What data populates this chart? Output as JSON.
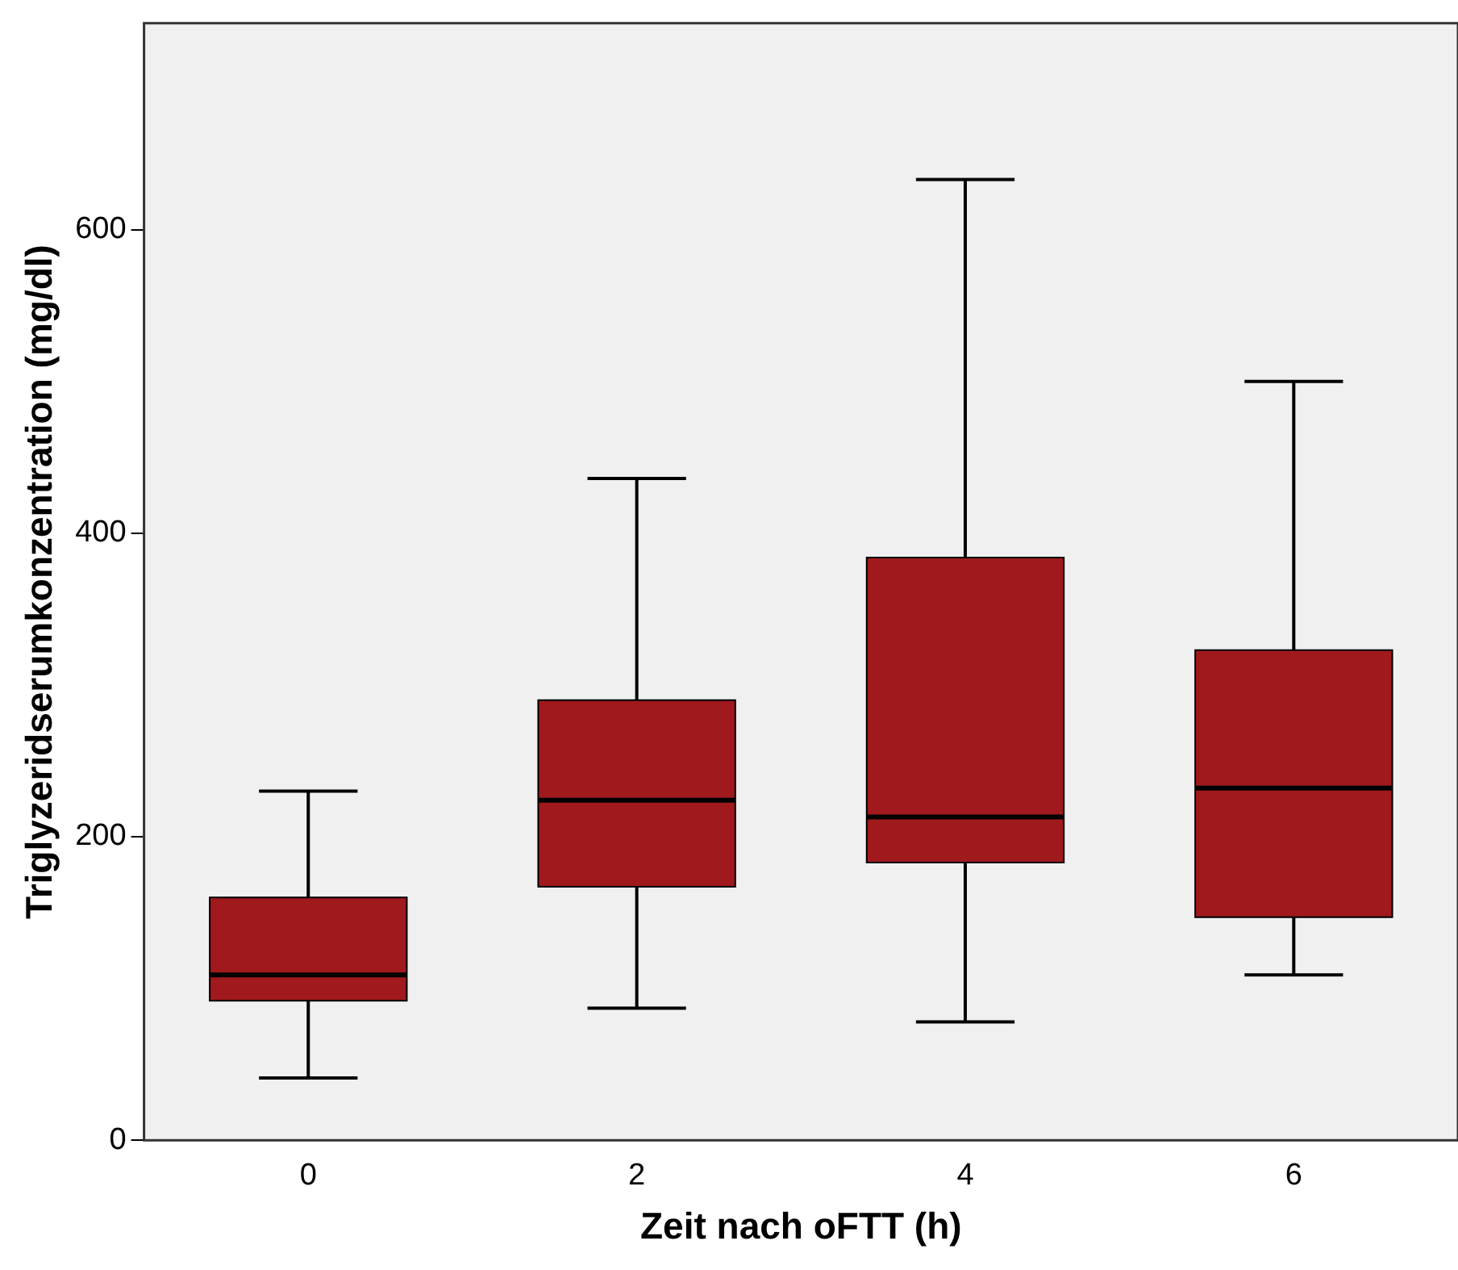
{
  "chart_data": {
    "type": "box",
    "xlabel": "Zeit nach oFTT (h)",
    "ylabel": "Triglyzeridserumkonzentration (mg/dl)",
    "categories": [
      "0",
      "2",
      "4",
      "6"
    ],
    "color": "#a0191d",
    "ylim": [
      0,
      736
    ],
    "yticks": [
      0,
      200,
      400,
      600
    ],
    "boxes": [
      {
        "low": 41,
        "q1": 92,
        "median": 109,
        "q3": 160,
        "high": 230
      },
      {
        "low": 87,
        "q1": 167,
        "median": 224,
        "q3": 290,
        "high": 436
      },
      {
        "low": 78,
        "q1": 183,
        "median": 213,
        "q3": 384,
        "high": 633
      },
      {
        "low": 109,
        "q1": 147,
        "median": 232,
        "q3": 323,
        "high": 500
      }
    ]
  }
}
